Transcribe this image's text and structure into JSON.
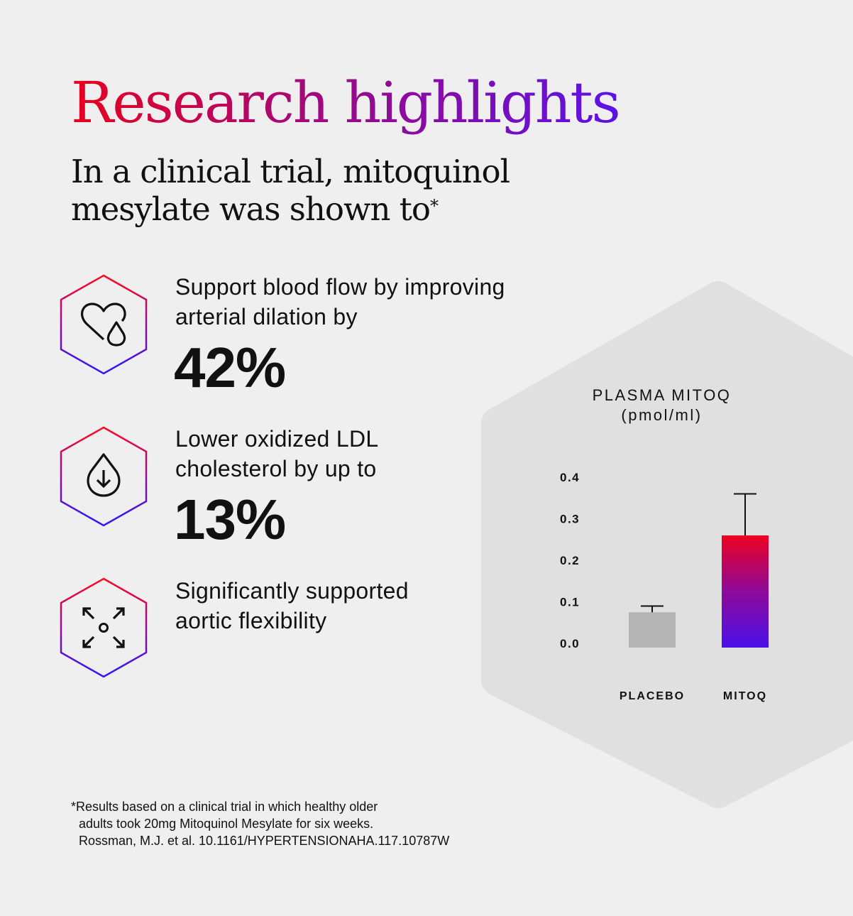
{
  "header": {
    "title": "Research highlights",
    "subtitle": "In a clinical trial, mitoquinol mesylate was shown to",
    "subtitle_mark": "*"
  },
  "claims": [
    {
      "icon": "heart-drop-icon",
      "text_line1": "Support blood flow by improving",
      "text_line2": "arterial dilation by",
      "stat": "42%"
    },
    {
      "icon": "drop-down-arrow-icon",
      "text_line1": "Lower oxidized LDL",
      "text_line2": "cholesterol by up to",
      "stat": "13%"
    },
    {
      "icon": "expand-arrows-icon",
      "text_line1": "Significantly supported",
      "text_line2": "aortic flexibility"
    }
  ],
  "footnote": {
    "line1": "*Results based on a clinical trial in which healthy older",
    "line2": "adults took 20mg Mitoquinol Mesylate for six weeks.",
    "line3": "Rossman, M.J. et al. 10.1161/HYPERTENSIONAHA.117.10787W"
  },
  "colors": {
    "gradient_start": "#e8001e",
    "gradient_end": "#4a10e8",
    "placebo": "#b4b4b4",
    "panel": "#e0e0e0",
    "background": "#efefef"
  },
  "chart_data": {
    "type": "bar",
    "title": "PLASMA MITOQ",
    "subtitle": "(pmol/ml)",
    "categories": [
      "PLACEBO",
      "MITOQ"
    ],
    "values": [
      0.085,
      0.27
    ],
    "error_upper": [
      0.1,
      0.37
    ],
    "yticks": [
      "0.0",
      "0.1",
      "0.2",
      "0.3",
      "0.4"
    ],
    "ylim": [
      0,
      0.4
    ],
    "grid": false
  }
}
